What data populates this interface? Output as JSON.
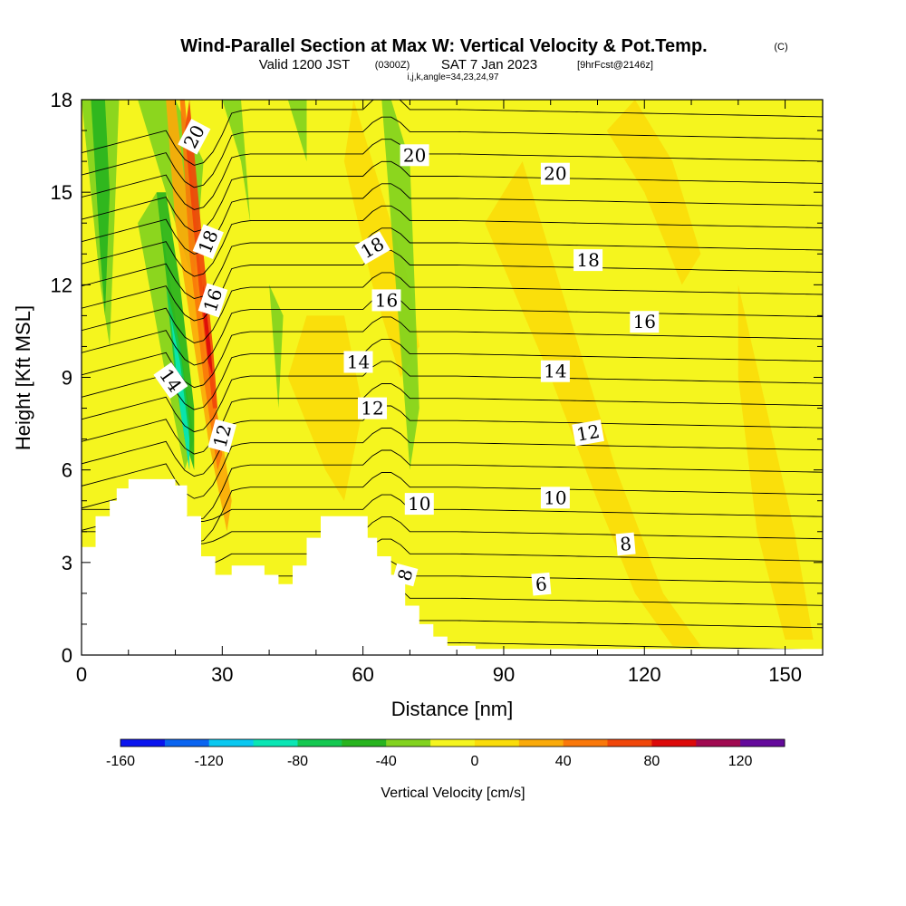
{
  "header": {
    "title": "Wind-Parallel Section at Max W: Vertical Velocity & Pot.Temp.",
    "copyright": "(C)",
    "sub_a": "Valid 1200 JST",
    "sub_b": "(0300Z)",
    "sub_c": "SAT 7 Jan 2023",
    "sub_d": "[9hrFcst@2146z]",
    "indices": "i,j,k,angle=34,23,24,97"
  },
  "chart_data": {
    "type": "heatmap",
    "xlabel": "Distance [nm]",
    "ylabel": "Height [Kft MSL]",
    "xlim": [
      0,
      158
    ],
    "ylim": [
      0,
      18
    ],
    "x_ticks": [
      0,
      30,
      60,
      90,
      120,
      150
    ],
    "y_ticks": [
      0,
      3,
      6,
      9,
      12,
      15,
      18
    ],
    "colorbar": {
      "label": "Vertical Velocity [cm/s]",
      "ticks": [
        -160,
        -120,
        -80,
        -40,
        0,
        40,
        80,
        120
      ],
      "bounds": [
        -160,
        140
      ],
      "colors": [
        "#0a14ee",
        "#0a64f0",
        "#0ac8f0",
        "#0ae6b4",
        "#14c850",
        "#28b41e",
        "#82d21e",
        "#f5f51e",
        "#fadc0a",
        "#faaa0a",
        "#fa780a",
        "#f0460a",
        "#dc0a0a",
        "#a00a50",
        "#640a9b"
      ]
    },
    "terrain_kft": [
      [
        0,
        3.5
      ],
      [
        3,
        3.5
      ],
      [
        3,
        4.5
      ],
      [
        6,
        4.5
      ],
      [
        6,
        5.0
      ],
      [
        7.5,
        5.0
      ],
      [
        7.5,
        5.4
      ],
      [
        10,
        5.4
      ],
      [
        10,
        5.7
      ],
      [
        13,
        5.7
      ],
      [
        13,
        5.7
      ],
      [
        20,
        5.7
      ],
      [
        20,
        5.5
      ],
      [
        22.5,
        5.5
      ],
      [
        22.5,
        4.5
      ],
      [
        25.5,
        4.5
      ],
      [
        25.5,
        3.2
      ],
      [
        28.5,
        3.2
      ],
      [
        28.5,
        2.6
      ],
      [
        32,
        2.6
      ],
      [
        32,
        2.9
      ],
      [
        39,
        2.9
      ],
      [
        39,
        2.6
      ],
      [
        42,
        2.6
      ],
      [
        42,
        2.3
      ],
      [
        45,
        2.3
      ],
      [
        45,
        2.9
      ],
      [
        48,
        2.9
      ],
      [
        48,
        3.8
      ],
      [
        51,
        3.8
      ],
      [
        51,
        4.5
      ],
      [
        61,
        4.5
      ],
      [
        61,
        3.8
      ],
      [
        63,
        3.8
      ],
      [
        63,
        3.2
      ],
      [
        66,
        3.2
      ],
      [
        66,
        2.6
      ],
      [
        69,
        2.6
      ],
      [
        69,
        1.6
      ],
      [
        72,
        1.6
      ],
      [
        72,
        1.0
      ],
      [
        75,
        1.0
      ],
      [
        75,
        0.6
      ],
      [
        78,
        0.6
      ],
      [
        78,
        0.3
      ],
      [
        84,
        0.3
      ],
      [
        84,
        0.2
      ],
      [
        158,
        0.2
      ]
    ],
    "theta_labels": [
      "20",
      "18",
      "16",
      "14",
      "12",
      "10",
      "8",
      "6"
    ],
    "theta_contour_labels": [
      {
        "text": "20",
        "x": 24,
        "y": 16.8,
        "rot": -62
      },
      {
        "text": "20",
        "x": 71,
        "y": 16.2,
        "rot": 0
      },
      {
        "text": "20",
        "x": 101,
        "y": 15.6,
        "rot": 0
      },
      {
        "text": "18",
        "x": 27,
        "y": 13.4,
        "rot": -68
      },
      {
        "text": "18",
        "x": 62,
        "y": 13.2,
        "rot": -30
      },
      {
        "text": "18",
        "x": 108,
        "y": 12.8,
        "rot": 0
      },
      {
        "text": "16",
        "x": 28,
        "y": 11.5,
        "rot": -72
      },
      {
        "text": "16",
        "x": 65,
        "y": 11.5,
        "rot": 0
      },
      {
        "text": "16",
        "x": 120,
        "y": 10.8,
        "rot": 0
      },
      {
        "text": "14",
        "x": 19,
        "y": 8.9,
        "rot": 55
      },
      {
        "text": "14",
        "x": 59,
        "y": 9.5,
        "rot": 0
      },
      {
        "text": "14",
        "x": 101,
        "y": 9.2,
        "rot": 0
      },
      {
        "text": "12",
        "x": 30,
        "y": 7.1,
        "rot": -75
      },
      {
        "text": "12",
        "x": 62,
        "y": 8.0,
        "rot": 0
      },
      {
        "text": "12",
        "x": 108,
        "y": 7.2,
        "rot": -10
      },
      {
        "text": "10",
        "x": 72,
        "y": 4.9,
        "rot": 0
      },
      {
        "text": "10",
        "x": 101,
        "y": 5.1,
        "rot": 0
      },
      {
        "text": "8",
        "x": 69,
        "y": 2.6,
        "rot": -75
      },
      {
        "text": "8",
        "x": 116,
        "y": 3.6,
        "rot": -5
      },
      {
        "text": "6",
        "x": 98,
        "y": 2.3,
        "rot": -5
      }
    ]
  }
}
